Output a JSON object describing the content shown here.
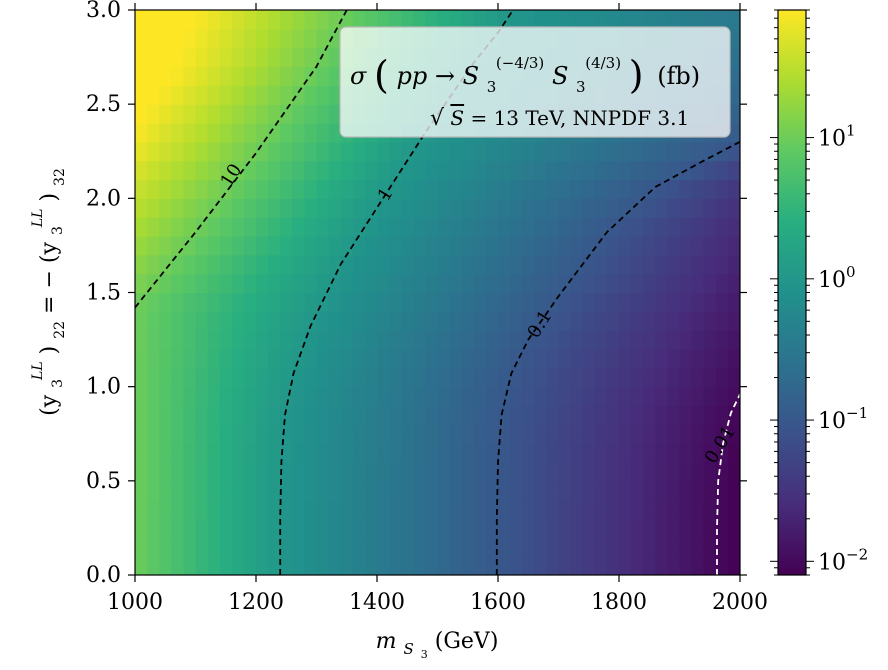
{
  "chart_data": {
    "type": "heatmap",
    "title": "σ (pp → S₃^(−4/3) S₃^(4/3)) (fb)",
    "legend": {
      "title_parts": {
        "sigma": "σ",
        "open": "(",
        "process": "pp → S",
        "sub1": "3",
        "sup1": "(−4/3)",
        "s2": "S",
        "sub2": "3",
        "sup2": "(4/3)",
        "close": ")",
        "unit": "(fb)"
      },
      "subtitle_parts": {
        "sqrt": "√",
        "S": "S",
        "rest": " = 13 TeV, NNPDF 3.1"
      },
      "placement": "top-right"
    },
    "x_axis": {
      "label_parts": {
        "m": "m",
        "sub": "S",
        "subsub": "3",
        "unit": " (GeV)"
      },
      "range": [
        1000,
        2000
      ],
      "ticks": [
        1000,
        1200,
        1400,
        1600,
        1800,
        2000
      ],
      "tick_labels": [
        "1000",
        "1200",
        "1400",
        "1600",
        "1800",
        "2000"
      ]
    },
    "y_axis": {
      "label_parts": {
        "lp1": "(y",
        "sub1": "3",
        "sup1": "LL",
        "rp1": ")",
        "idx1": "22",
        "eq": " = −",
        "lp2": "(y",
        "sub2": "3",
        "sup2": "LL",
        "rp2": ")",
        "idx2": "32"
      },
      "range": [
        0.0,
        3.0
      ],
      "ticks": [
        0.0,
        0.5,
        1.0,
        1.5,
        2.0,
        2.5,
        3.0
      ],
      "tick_labels": [
        "0.0",
        "0.5",
        "1.0",
        "1.5",
        "2.0",
        "2.5",
        "3.0"
      ]
    },
    "colorbar": {
      "scale": "log",
      "range": [
        0.008,
        80
      ],
      "ticks": [
        {
          "exp": "1",
          "value": 10
        },
        {
          "exp": "0",
          "value": 1
        },
        {
          "exp": "−1",
          "value": 0.1
        },
        {
          "exp": "−2",
          "value": 0.01
        }
      ],
      "tick_base": "10",
      "colormap": "viridis"
    },
    "contours": [
      {
        "value": 10,
        "label": "10",
        "color": "#000000",
        "style": "dashed",
        "points": [
          [
            1000,
            1.42
          ],
          [
            1100,
            1.82
          ],
          [
            1200,
            2.24
          ],
          [
            1300,
            2.7
          ],
          [
            1350,
            3.0
          ]
        ],
        "label_at": [
          1160,
          2.12
        ]
      },
      {
        "value": 1,
        "label": "1",
        "color": "#000000",
        "style": "dashed",
        "points": [
          [
            1240,
            0.0
          ],
          [
            1240,
            0.3
          ],
          [
            1242,
            0.6
          ],
          [
            1248,
            0.85
          ],
          [
            1262,
            1.07
          ],
          [
            1290,
            1.32
          ],
          [
            1340,
            1.65
          ],
          [
            1400,
            1.95
          ],
          [
            1480,
            2.35
          ],
          [
            1560,
            2.72
          ],
          [
            1600,
            2.88
          ],
          [
            1625,
            3.0
          ]
        ],
        "label_at": [
          1415,
          2.02
        ]
      },
      {
        "value": 0.1,
        "label": "0.1",
        "color": "#000000",
        "style": "dashed",
        "points": [
          [
            1598,
            0.0
          ],
          [
            1598,
            0.3
          ],
          [
            1600,
            0.6
          ],
          [
            1606,
            0.85
          ],
          [
            1622,
            1.07
          ],
          [
            1650,
            1.25
          ],
          [
            1700,
            1.48
          ],
          [
            1780,
            1.82
          ],
          [
            1860,
            2.06
          ],
          [
            1940,
            2.2
          ],
          [
            2000,
            2.3
          ]
        ],
        "label_at": [
          1670,
          1.33
        ]
      },
      {
        "value": 0.01,
        "label": "0.01",
        "color": "#ffffff",
        "style": "dashed",
        "points": [
          [
            1962,
            0.0
          ],
          [
            1962,
            0.25
          ],
          [
            1964,
            0.5
          ],
          [
            1972,
            0.7
          ],
          [
            1985,
            0.86
          ],
          [
            2000,
            0.96
          ]
        ],
        "label_at": [
          1968,
          0.69
        ]
      }
    ]
  }
}
